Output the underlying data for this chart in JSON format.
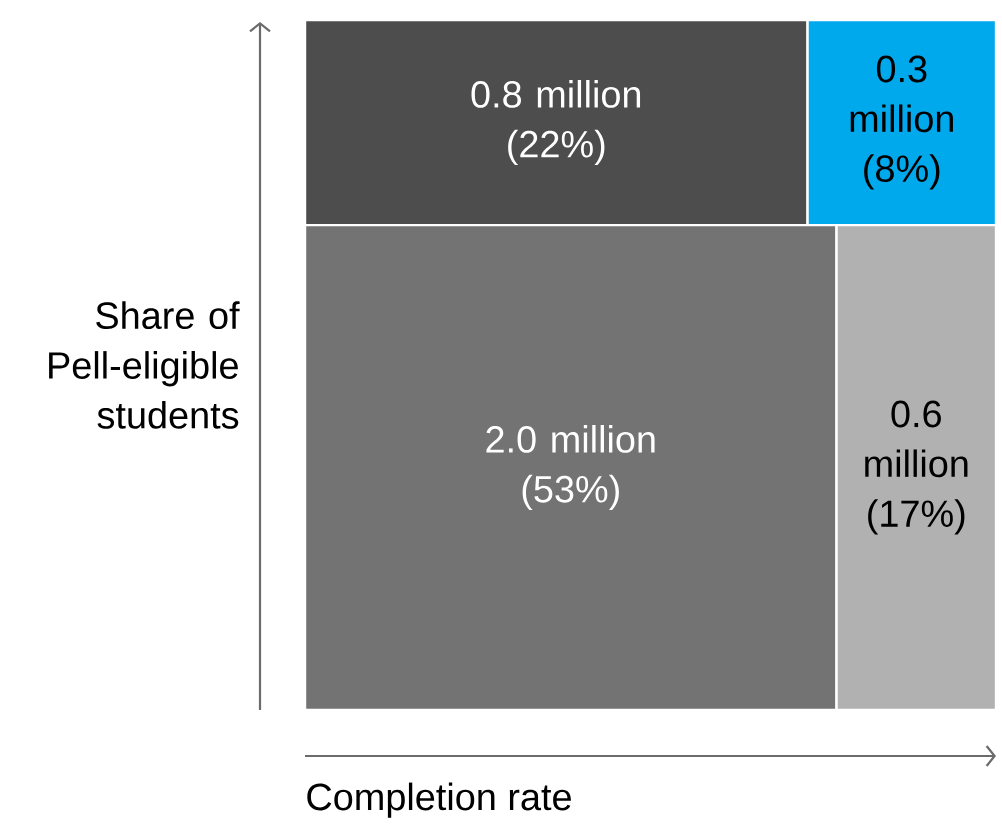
{
  "chart_data": {
    "type": "other",
    "xlabel": "Completion rate",
    "ylabel": "Share of Pell-eligible students",
    "values": [
      0.8,
      0.3,
      2.0,
      0.6
    ],
    "colors": [
      "#4d4d4d",
      "#00a8ec",
      "#737373",
      "#b1b1b1"
    ],
    "value_labels": [
      "0.8 million",
      "0.3 million",
      "2.0 million",
      "0.6 million"
    ],
    "annotations": [
      "(22%)",
      "(8%)",
      "(53%)",
      "(17%)"
    ]
  }
}
